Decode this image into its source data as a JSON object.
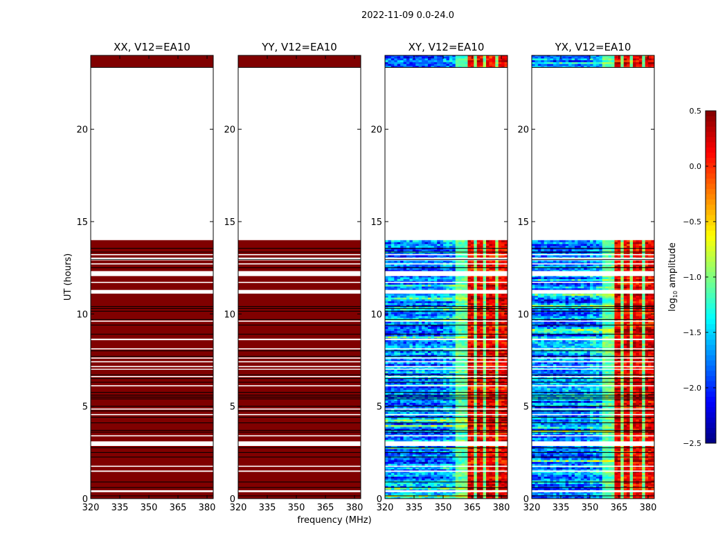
{
  "chart_data": {
    "type": "heatmap",
    "title": "2022-11-09 0.0-24.0",
    "xlabel": "frequency (MHz)",
    "ylabel": "UT (hours)",
    "xlim": [
      320,
      383.2
    ],
    "ylim": [
      0,
      24
    ],
    "xticks": [
      "320",
      "335",
      "350",
      "365",
      "380"
    ],
    "xtick_values": [
      320,
      335,
      350,
      365,
      380
    ],
    "yticks": [
      "0",
      "5",
      "10",
      "15",
      "20"
    ],
    "ytick_values": [
      0,
      5,
      10,
      15,
      20
    ],
    "colorbar": {
      "label_prefix": "log",
      "label_sub": "10",
      "label_suffix": " amplitude",
      "range": [
        -2.5,
        0.5
      ],
      "colormap": "jet",
      "ticks": [
        "0.5",
        "0.0",
        "−0.5",
        "−1.0",
        "−1.5",
        "−2.0",
        "−2.5"
      ],
      "tick_values": [
        0.5,
        0.0,
        -0.5,
        -1.0,
        -1.5,
        -2.0,
        -2.5
      ]
    },
    "data_time_ranges": [
      [
        0.0,
        14.0
      ],
      [
        23.35,
        24.0
      ]
    ],
    "flagged_time_ranges": [
      [
        0.35,
        0.45
      ],
      [
        1.45,
        1.52
      ],
      [
        1.72,
        1.78
      ],
      [
        2.85,
        3.1
      ],
      [
        3.37,
        3.43
      ],
      [
        4.52,
        4.58
      ],
      [
        4.82,
        4.88
      ],
      [
        6.08,
        6.14
      ],
      [
        6.58,
        6.64
      ],
      [
        6.98,
        7.03
      ],
      [
        7.12,
        7.18
      ],
      [
        7.38,
        7.44
      ],
      [
        7.58,
        7.64
      ],
      [
        8.08,
        8.14
      ],
      [
        8.58,
        8.66
      ],
      [
        9.58,
        9.64
      ],
      [
        11.1,
        11.3
      ],
      [
        11.68,
        11.74
      ],
      [
        12.05,
        12.32
      ],
      [
        12.68,
        12.74
      ],
      [
        12.9,
        13.05
      ],
      [
        13.18,
        13.24
      ],
      [
        14.0,
        23.35
      ]
    ],
    "scan_boundaries": [
      0.15,
      0.6,
      0.9,
      2.25,
      2.5,
      2.75,
      3.6,
      3.7,
      4.1,
      4.4,
      4.75,
      5.0,
      5.4,
      5.5,
      5.6,
      5.75,
      6.3,
      6.5,
      6.7,
      7.7,
      8.0,
      8.9,
      9.4,
      9.7,
      10.15,
      10.3,
      10.4,
      12.5,
      12.95,
      13.35,
      13.55
    ],
    "panels": [
      {
        "title": "XX, V12=EA10",
        "kind": "parallel",
        "typical_log_amp": 0.5
      },
      {
        "title": "YY, V12=EA10",
        "kind": "parallel",
        "typical_log_amp": 0.5
      },
      {
        "title": "XY, V12=EA10",
        "kind": "cross",
        "bands": [
          {
            "freq": [
              320,
              357
            ],
            "typical_log_amp": -1.75
          },
          {
            "freq": [
              357,
              363
            ],
            "typical_log_amp": -1.1
          },
          {
            "freq": [
              363,
              383.2
            ],
            "typical_log_amp": 0.15
          }
        ]
      },
      {
        "title": "YX, V12=EA10",
        "kind": "cross",
        "bands": [
          {
            "freq": [
              320,
              357
            ],
            "typical_log_amp": -1.75
          },
          {
            "freq": [
              357,
              363
            ],
            "typical_log_amp": -1.1
          },
          {
            "freq": [
              363,
              383.2
            ],
            "typical_log_amp": 0.15
          }
        ]
      }
    ]
  }
}
